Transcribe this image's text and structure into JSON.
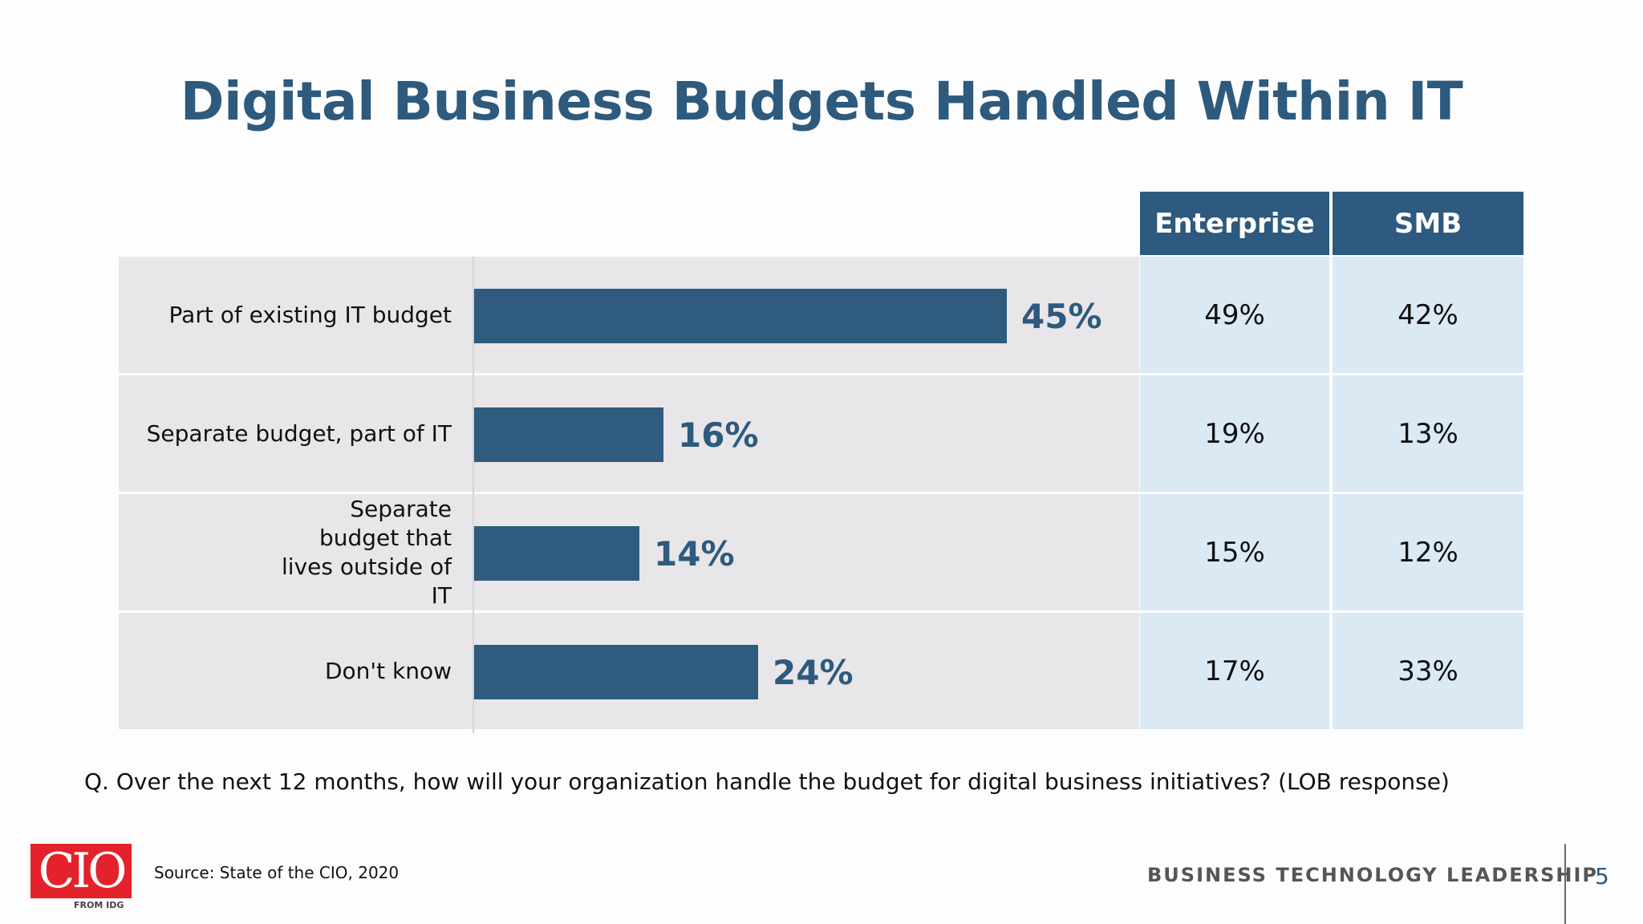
{
  "slide": {
    "title": "Digital Business Budgets Handled Within IT",
    "question": "Q. Over the next 12 months, how will your organization handle the budget for digital business initiatives? (LOB response)",
    "source": "Source: State of the CIO, 2020",
    "logo_text": "CIO",
    "logo_subtext": "FROM IDG",
    "tagline": "BUSINESS TECHNOLOGY LEADERSHIP",
    "page_number": "5"
  },
  "colors": {
    "title": "#2d5a7d",
    "bar": "#2e5b7e",
    "header_bg": "#2d5a7e",
    "row_bg": "#e8e6e9",
    "table_cell_bg": "#dbe9f5",
    "logo_red": "#e3222b"
  },
  "chart_data": {
    "type": "bar",
    "orientation": "horizontal",
    "categories": [
      "Part of existing IT budget",
      "Separate budget, part of IT",
      "Separate budget that lives outside of IT",
      "Don't know"
    ],
    "values": [
      45,
      16,
      14,
      24
    ],
    "value_labels": [
      "45%",
      "16%",
      "14%",
      "24%"
    ],
    "unit": "%",
    "xlim": [
      0,
      100
    ],
    "grid": false,
    "table": {
      "columns": [
        "Enterprise",
        "SMB"
      ],
      "rows": [
        [
          "49%",
          "42%"
        ],
        [
          "19%",
          "13%"
        ],
        [
          "15%",
          "12%"
        ],
        [
          "17%",
          "33%"
        ]
      ]
    }
  }
}
